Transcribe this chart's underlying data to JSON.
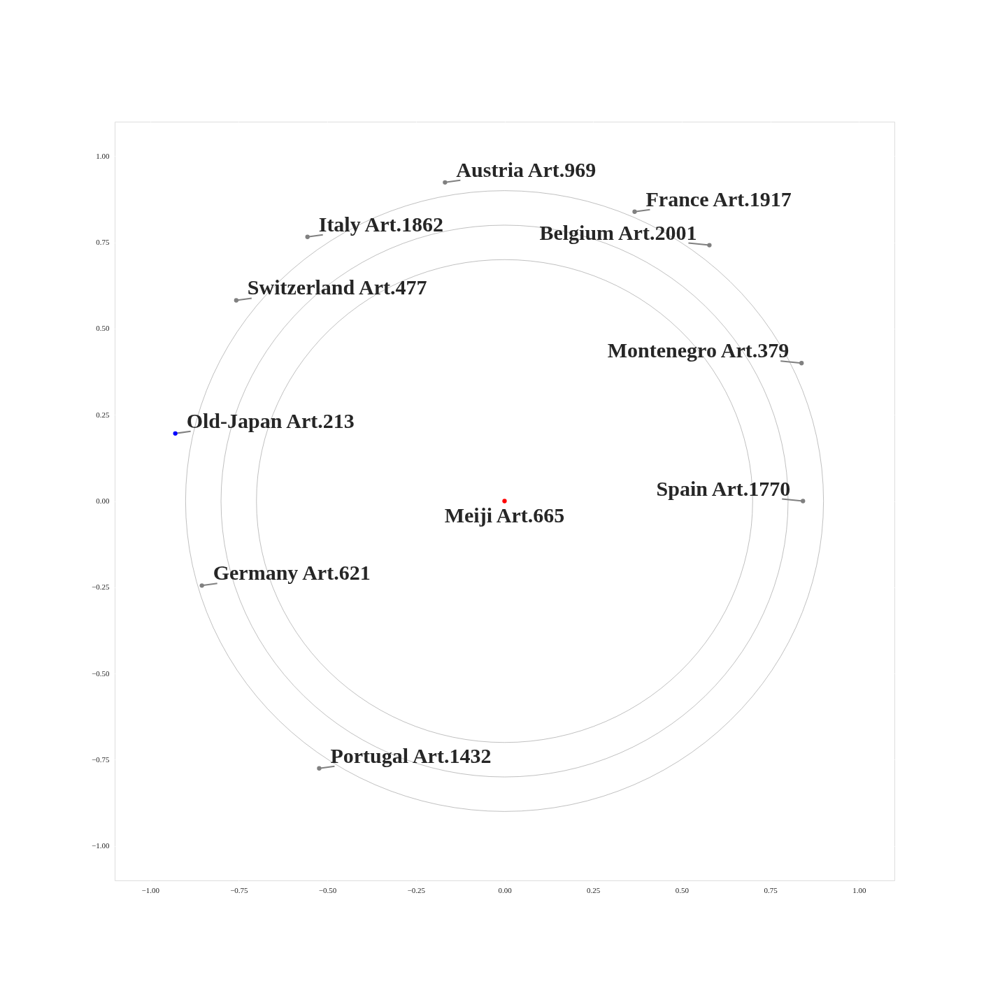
{
  "chart_data": {
    "type": "scatter",
    "xlim": [
      -1.1,
      1.1
    ],
    "ylim": [
      -1.1,
      1.1
    ],
    "xticks": [
      {
        "value": -1,
        "label": "−1.00"
      },
      {
        "value": -0.75,
        "label": "−0.75"
      },
      {
        "value": -0.5,
        "label": "−0.50"
      },
      {
        "value": -0.25,
        "label": "−0.25"
      },
      {
        "value": 0,
        "label": "0.00"
      },
      {
        "value": 0.25,
        "label": "0.25"
      },
      {
        "value": 0.5,
        "label": "0.50"
      },
      {
        "value": 0.75,
        "label": "0.75"
      },
      {
        "value": 1,
        "label": "1.00"
      }
    ],
    "yticks": [
      {
        "value": -1,
        "label": "−1.00"
      },
      {
        "value": -0.75,
        "label": "−0.75"
      },
      {
        "value": -0.5,
        "label": "−0.50"
      },
      {
        "value": -0.25,
        "label": "−0.25"
      },
      {
        "value": 0,
        "label": "0.00"
      },
      {
        "value": 0.25,
        "label": "0.25"
      },
      {
        "value": 0.5,
        "label": "0.50"
      },
      {
        "value": 0.75,
        "label": "0.75"
      },
      {
        "value": 1,
        "label": "1.00"
      }
    ],
    "grid": true,
    "marker": "circle",
    "series": [
      {
        "type": "scatter",
        "x": [
          -0.168,
          0.367,
          -0.556,
          0.578,
          -0.757,
          0.838,
          -0.929,
          0.842,
          0,
          -0.854,
          -0.523
        ],
        "values": [
          0.924,
          0.839,
          0.766,
          0.742,
          0.582,
          0.4,
          0.196,
          0,
          0,
          -0.245,
          -0.775
        ],
        "colors": [
          "#808080",
          "#808080",
          "#808080",
          "#808080",
          "#808080",
          "#808080",
          "#0000ff",
          "#808080",
          "#ff0000",
          "#808080",
          "#808080"
        ]
      }
    ],
    "annotations": [
      {
        "text": "Austria Art.969",
        "x": -0.168,
        "y": 0.924
      },
      {
        "text": "France Art.1917",
        "x": 0.367,
        "y": 0.839
      },
      {
        "text": "Italy Art.1862",
        "x": -0.556,
        "y": 0.766
      },
      {
        "text": "Belgium Art.2001",
        "x": 0.578,
        "y": 0.742
      },
      {
        "text": "Switzerland Art.477",
        "x": -0.757,
        "y": 0.582
      },
      {
        "text": "Montenegro Art.379",
        "x": 0.838,
        "y": 0.4
      },
      {
        "text": "Old-Japan Art.213",
        "x": -0.929,
        "y": 0.196
      },
      {
        "text": "Spain Art.1770",
        "x": 0.842,
        "y": 0
      },
      {
        "text": "Meiji Art.665",
        "x": 0,
        "y": 0
      },
      {
        "text": "Germany Art.621",
        "x": -0.854,
        "y": -0.245
      },
      {
        "text": "Portugal Art.1432",
        "x": -0.523,
        "y": -0.775
      }
    ]
  }
}
